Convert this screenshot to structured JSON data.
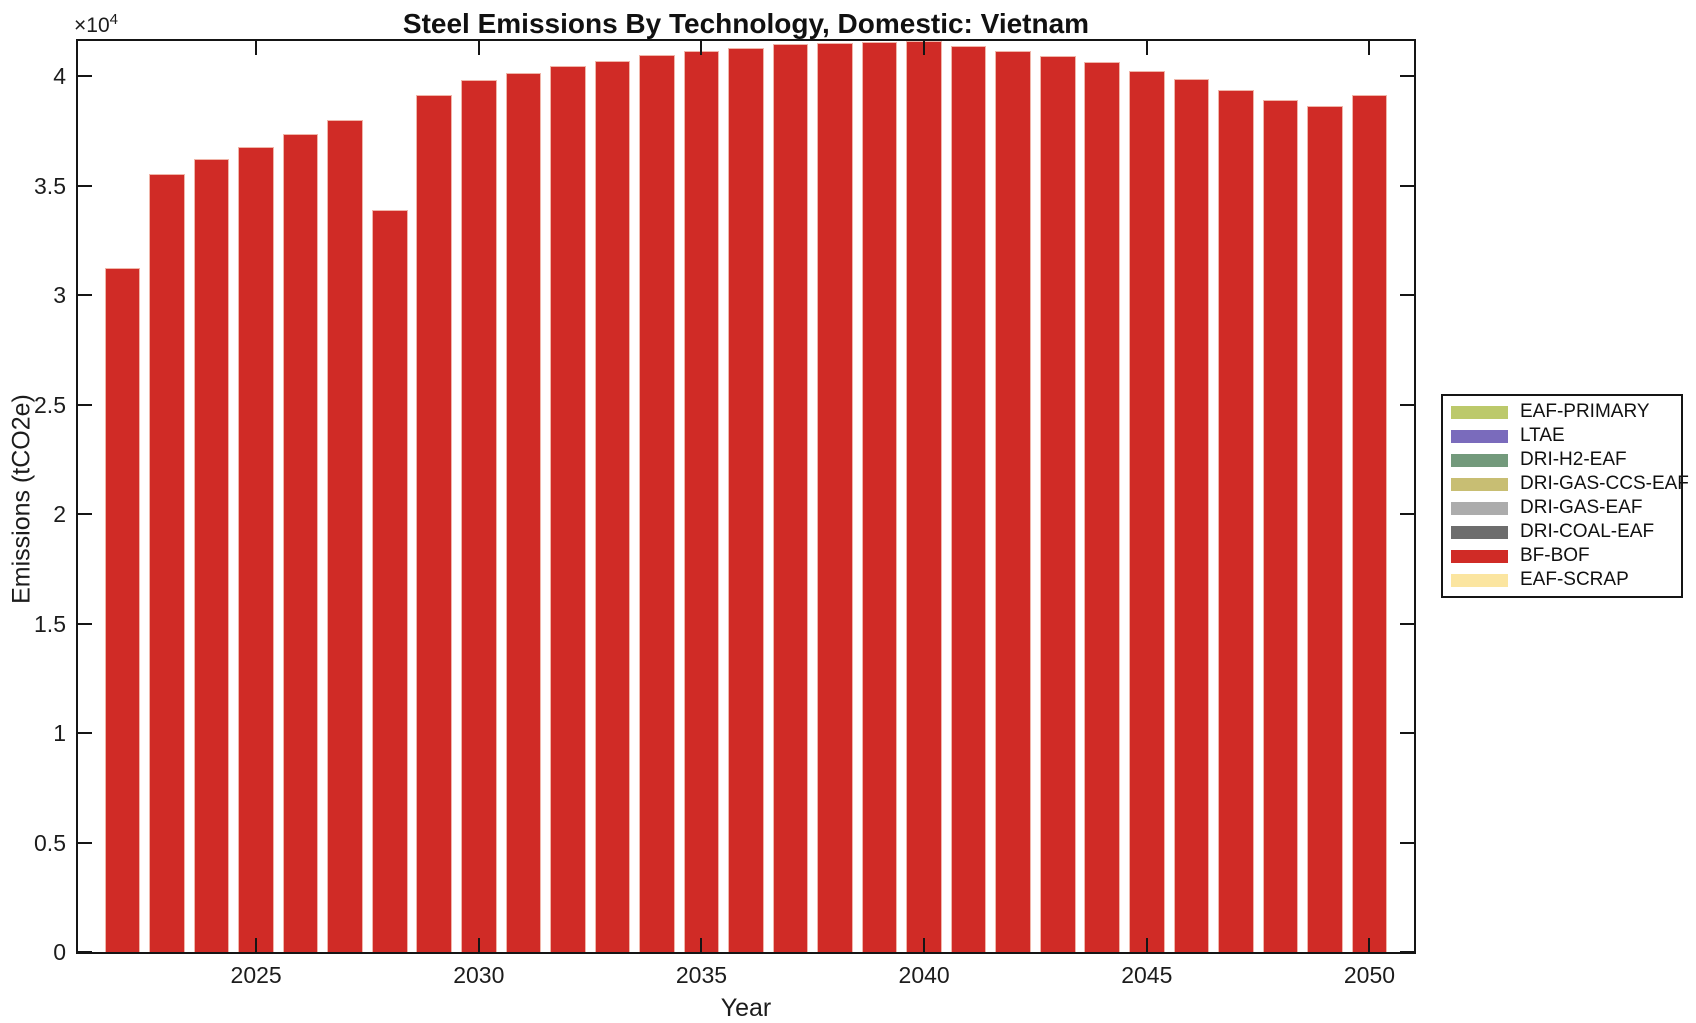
{
  "figure": {
    "title": "Steel Emissions By Technology, Domestic: Vietnam",
    "xlabel": "Year",
    "ylabel": "Emissions (tCO2e)",
    "y_multiplier_base": "×10",
    "y_multiplier_exp": "4"
  },
  "colors": {
    "bar_face": "#d02b26",
    "axis": "#151515",
    "background": "#ffffff"
  },
  "chart_data": {
    "type": "bar",
    "title": "Steel Emissions By Technology, Domestic: Vietnam",
    "xlabel": "Year",
    "ylabel": "Emissions (tCO2e)",
    "series_name": "BF-BOF",
    "x": [
      2022,
      2023,
      2024,
      2025,
      2026,
      2027,
      2028,
      2029,
      2030,
      2031,
      2032,
      2033,
      2034,
      2035,
      2036,
      2037,
      2038,
      2039,
      2040,
      2041,
      2042,
      2043,
      2044,
      2045,
      2046,
      2047,
      2048,
      2049,
      2050
    ],
    "values": [
      31250,
      35550,
      36200,
      36750,
      37350,
      38000,
      33900,
      39150,
      39800,
      40150,
      40450,
      40700,
      40950,
      41150,
      41300,
      41450,
      41520,
      41570,
      41600,
      41350,
      41150,
      40900,
      40650,
      40250,
      39850,
      39350,
      38900,
      38650,
      39150
    ],
    "xlim": [
      2021,
      2051
    ],
    "ylim": [
      0,
      41600
    ],
    "xticks": [
      2025,
      2030,
      2035,
      2040,
      2045,
      2050
    ],
    "yticks": {
      "values": [
        0,
        5000,
        10000,
        15000,
        20000,
        25000,
        30000,
        35000,
        40000
      ],
      "labels": [
        "0",
        "0.5",
        "1",
        "1.5",
        "2",
        "2.5",
        "3",
        "3.5",
        "4"
      ]
    },
    "grid": false,
    "legend": {
      "position": "outside-right",
      "entries": [
        {
          "label": "EAF-PRIMARY",
          "color": "#bcc96b"
        },
        {
          "label": "LTAE",
          "color": "#7a6bbc"
        },
        {
          "label": "DRI-H2-EAF",
          "color": "#739a7c"
        },
        {
          "label": "DRI-GAS-CCS-EAF",
          "color": "#c8be73"
        },
        {
          "label": "DRI-GAS-EAF",
          "color": "#acacac"
        },
        {
          "label": "DRI-COAL-EAF",
          "color": "#6d6d6d"
        },
        {
          "label": "BF-BOF",
          "color": "#d02b26"
        },
        {
          "label": "EAF-SCRAP",
          "color": "#fbe5a0"
        }
      ]
    }
  }
}
